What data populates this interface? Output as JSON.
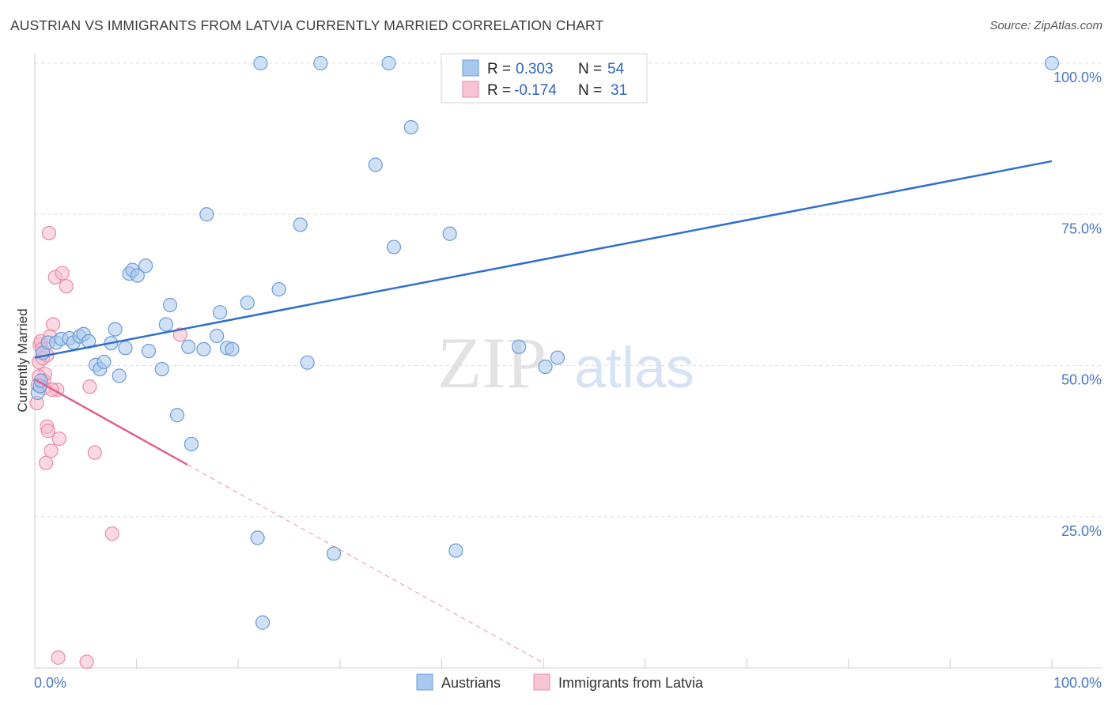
{
  "header": {
    "title": "AUSTRIAN VS IMMIGRANTS FROM LATVIA CURRENTLY MARRIED CORRELATION CHART",
    "source": "Source: ZipAtlas.com"
  },
  "watermark": {
    "zip": "ZIP",
    "atlas": "atlas"
  },
  "colors": {
    "austrians_fill": "#a9c8ef",
    "austrians_stroke": "#6a9bd8",
    "austrians_line": "#2f6fcf",
    "latvia_fill": "#f7b9cb",
    "latvia_stroke": "#e98aa8",
    "latvia_line": "#e0608a",
    "tick_label": "#4a78c4",
    "grid": "#dedede"
  },
  "legend": {
    "rows": [
      {
        "r_label": "R =",
        "r_value": "0.303",
        "n_label": "N =",
        "n_value": "54"
      },
      {
        "r_label": "R =",
        "r_value": "-0.174",
        "n_label": "N =",
        "n_value": "31"
      }
    ]
  },
  "chart_data": {
    "type": "scatter",
    "title": "AUSTRIAN VS IMMIGRANTS FROM LATVIA CURRENTLY MARRIED CORRELATION CHART",
    "xlabel": "",
    "ylabel": "Currently Married",
    "xlim": [
      0,
      100
    ],
    "ylim": [
      0,
      100
    ],
    "x_tick_labels": [
      "0.0%",
      "100.0%"
    ],
    "y_tick_labels": [
      "25.0%",
      "50.0%",
      "75.0%",
      "100.0%"
    ],
    "y_ticks": [
      25,
      50,
      75,
      100
    ],
    "legend_position": "top-center",
    "series": [
      {
        "name": "Austrians",
        "r": 0.303,
        "n": 54,
        "trend": {
          "x0": 0,
          "y0": 51.3,
          "x1": 100,
          "y1": 83.8
        },
        "points": [
          [
            0.3,
            45.5
          ],
          [
            0.5,
            46.6
          ],
          [
            0.6,
            47.5
          ],
          [
            0.8,
            52.1
          ],
          [
            1.3,
            53.8
          ],
          [
            2.1,
            53.8
          ],
          [
            2.6,
            54.4
          ],
          [
            3.4,
            54.5
          ],
          [
            3.8,
            53.8
          ],
          [
            4.4,
            54.8
          ],
          [
            4.8,
            55.2
          ],
          [
            5.3,
            54.0
          ],
          [
            6.0,
            50.1
          ],
          [
            6.4,
            49.4
          ],
          [
            6.8,
            50.6
          ],
          [
            7.5,
            53.7
          ],
          [
            7.9,
            56.0
          ],
          [
            8.3,
            48.3
          ],
          [
            8.9,
            52.9
          ],
          [
            9.3,
            65.2
          ],
          [
            9.6,
            65.8
          ],
          [
            10.1,
            64.9
          ],
          [
            10.9,
            66.5
          ],
          [
            11.2,
            52.4
          ],
          [
            12.5,
            49.4
          ],
          [
            12.9,
            56.8
          ],
          [
            13.3,
            60.0
          ],
          [
            14.0,
            41.8
          ],
          [
            15.1,
            53.1
          ],
          [
            15.4,
            37.0
          ],
          [
            16.6,
            52.7
          ],
          [
            16.9,
            75.0
          ],
          [
            17.9,
            54.9
          ],
          [
            18.2,
            58.8
          ],
          [
            18.9,
            52.9
          ],
          [
            19.4,
            52.7
          ],
          [
            20.9,
            60.4
          ],
          [
            21.9,
            21.5
          ],
          [
            22.2,
            100
          ],
          [
            22.4,
            7.5
          ],
          [
            24.0,
            62.6
          ],
          [
            26.1,
            73.3
          ],
          [
            26.8,
            50.5
          ],
          [
            28.1,
            100
          ],
          [
            29.4,
            18.9
          ],
          [
            33.5,
            83.2
          ],
          [
            34.8,
            100
          ],
          [
            35.3,
            69.6
          ],
          [
            37.0,
            89.4
          ],
          [
            40.8,
            71.8
          ],
          [
            41.4,
            19.4
          ],
          [
            47.6,
            53.1
          ],
          [
            50.2,
            49.8
          ],
          [
            51.4,
            51.3
          ],
          [
            100,
            100
          ]
        ]
      },
      {
        "name": "Immigrants from Latvia",
        "r": -0.174,
        "n": 31,
        "trend": {
          "x0": 0,
          "y0": 47.7,
          "x1": 15.0,
          "y1": 33.6
        },
        "trend_extended": {
          "x0": 15.0,
          "y0": 33.6,
          "x1": 50.0,
          "y1": 0.8
        },
        "points": [
          [
            0.2,
            43.8
          ],
          [
            0.3,
            46.8
          ],
          [
            0.4,
            50.6
          ],
          [
            0.5,
            53.5
          ],
          [
            0.6,
            54.0
          ],
          [
            0.7,
            52.7
          ],
          [
            0.8,
            51.2
          ],
          [
            0.9,
            47.5
          ],
          [
            1.0,
            48.6
          ],
          [
            1.1,
            33.9
          ],
          [
            1.2,
            39.9
          ],
          [
            1.3,
            39.2
          ],
          [
            1.4,
            71.9
          ],
          [
            1.6,
            35.9
          ],
          [
            1.8,
            56.8
          ],
          [
            2.0,
            64.6
          ],
          [
            2.2,
            46.0
          ],
          [
            2.4,
            37.9
          ],
          [
            2.7,
            65.3
          ],
          [
            3.1,
            63.1
          ],
          [
            2.3,
            1.7
          ],
          [
            5.1,
            1.0
          ],
          [
            5.4,
            46.5
          ],
          [
            5.9,
            35.6
          ],
          [
            7.6,
            22.2
          ],
          [
            14.3,
            55.1
          ],
          [
            1.5,
            54.8
          ],
          [
            0.9,
            46.3
          ],
          [
            1.7,
            46.0
          ],
          [
            0.4,
            48.2
          ],
          [
            1.2,
            51.7
          ]
        ]
      }
    ]
  }
}
